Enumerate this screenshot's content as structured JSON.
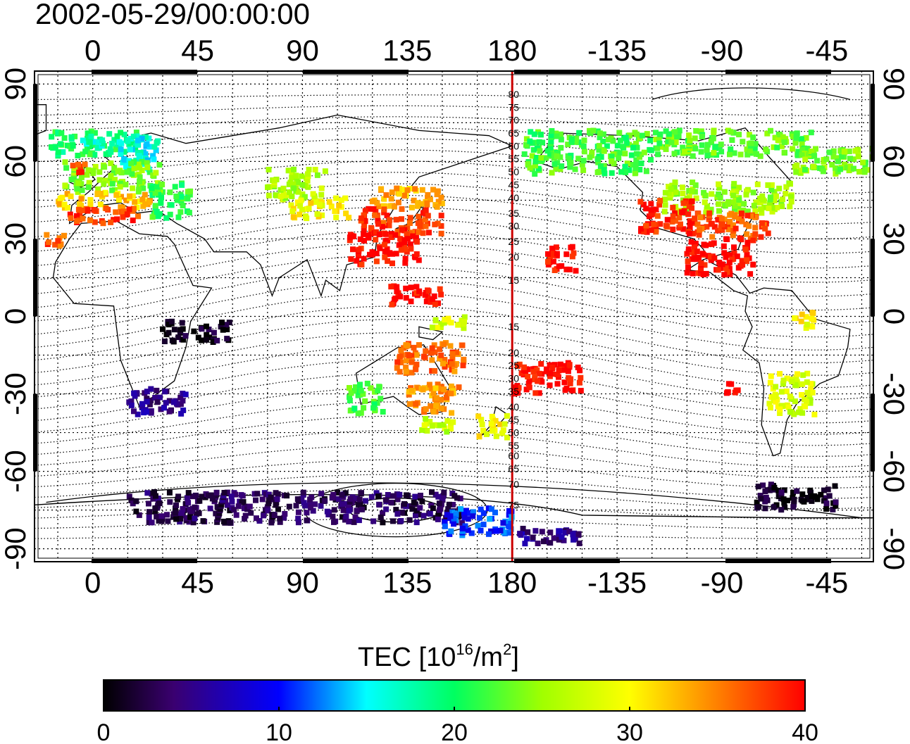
{
  "timestamp": "2002-05-29/00:00:00",
  "map": {
    "lon_range": [
      -25,
      335
    ],
    "lat_range": [
      -95,
      95
    ],
    "lon_ticks": [
      {
        "value": 0,
        "label": "0"
      },
      {
        "value": 45,
        "label": "45"
      },
      {
        "value": 90,
        "label": "90"
      },
      {
        "value": 135,
        "label": "135"
      },
      {
        "value": 180,
        "label": "180"
      },
      {
        "value": 225,
        "label": "-135"
      },
      {
        "value": 270,
        "label": "-90"
      },
      {
        "value": 315,
        "label": "-45"
      }
    ],
    "lat_ticks": [
      {
        "value": 90,
        "label": "90"
      },
      {
        "value": 60,
        "label": "60"
      },
      {
        "value": 30,
        "label": "30"
      },
      {
        "value": 0,
        "label": "0"
      },
      {
        "value": -30,
        "label": "-30"
      },
      {
        "value": -60,
        "label": "-60"
      },
      {
        "value": -90,
        "label": "-90"
      }
    ],
    "meridian_line_lon": 180,
    "meridian_color": "#cc0000",
    "contour_labels": [
      {
        "lat": 86,
        "label": "80"
      },
      {
        "lat": 81,
        "label": "75"
      },
      {
        "lat": 76,
        "label": "70"
      },
      {
        "lat": 71,
        "label": "65"
      },
      {
        "lat": 66,
        "label": "60"
      },
      {
        "lat": 61,
        "label": "55"
      },
      {
        "lat": 56,
        "label": "50"
      },
      {
        "lat": 51,
        "label": "45"
      },
      {
        "lat": 46,
        "label": "40"
      },
      {
        "lat": 40,
        "label": "35"
      },
      {
        "lat": 35,
        "label": "30"
      },
      {
        "lat": 29,
        "label": "25"
      },
      {
        "lat": 23,
        "label": "20"
      },
      {
        "lat": 14,
        "label": "15"
      },
      {
        "lat": -4,
        "label": "15"
      },
      {
        "lat": -14,
        "label": "20"
      },
      {
        "lat": -19,
        "label": "25"
      },
      {
        "lat": -24,
        "label": "30"
      },
      {
        "lat": -29,
        "label": "35"
      },
      {
        "lat": -35,
        "label": "40"
      },
      {
        "lat": -40,
        "label": "45"
      },
      {
        "lat": -45,
        "label": "50"
      },
      {
        "lat": -50,
        "label": "55"
      },
      {
        "lat": -54,
        "label": "60"
      },
      {
        "lat": -59,
        "label": "65"
      },
      {
        "lat": -65,
        "label": "70"
      },
      {
        "lat": -73,
        "label": "75"
      }
    ]
  },
  "colorbar": {
    "title_main": "TEC  [10",
    "title_exp1": "16",
    "title_mid": "/m",
    "title_exp2": "2",
    "title_end": "]",
    "min": 0,
    "max": 40,
    "ticks": [
      {
        "value": 0,
        "label": "0"
      },
      {
        "value": 10,
        "label": "10"
      },
      {
        "value": 20,
        "label": "20"
      },
      {
        "value": 30,
        "label": "30"
      },
      {
        "value": 40,
        "label": "40"
      }
    ],
    "stops": [
      {
        "v": 0,
        "color": "#000000"
      },
      {
        "v": 4,
        "color": "#3a0070"
      },
      {
        "v": 10,
        "color": "#0000ff"
      },
      {
        "v": 15,
        "color": "#00ffff"
      },
      {
        "v": 20,
        "color": "#00ff60"
      },
      {
        "v": 25,
        "color": "#a0ff00"
      },
      {
        "v": 30,
        "color": "#ffff00"
      },
      {
        "v": 35,
        "color": "#ff8000"
      },
      {
        "v": 40,
        "color": "#ff0000"
      }
    ]
  },
  "chart_data": {
    "type": "heatmap",
    "title": "2002-05-29/00:00:00",
    "colorbar_label": "TEC [10^16/m^2]",
    "value_range": [
      0,
      40
    ],
    "regions": [
      {
        "lon": [
          -18,
          20
        ],
        "lat": [
          62,
          72
        ],
        "tec": 20
      },
      {
        "lon": [
          -5,
          22
        ],
        "lat": [
          66,
          70
        ],
        "tec": 17
      },
      {
        "lon": [
          12,
          28
        ],
        "lat": [
          56,
          70
        ],
        "tec": 16
      },
      {
        "lon": [
          -12,
          30
        ],
        "lat": [
          48,
          60
        ],
        "tec": 24
      },
      {
        "lon": [
          -15,
          25
        ],
        "lat": [
          42,
          48
        ],
        "tec": 32
      },
      {
        "lon": [
          -10,
          20
        ],
        "lat": [
          36,
          42
        ],
        "tec": 38
      },
      {
        "lon": [
          -10,
          -2
        ],
        "lat": [
          55,
          59
        ],
        "tec": 37
      },
      {
        "lon": [
          25,
          42
        ],
        "lat": [
          38,
          52
        ],
        "tec": 21
      },
      {
        "lon": [
          -22,
          -12
        ],
        "lat": [
          27,
          32
        ],
        "tec": 37
      },
      {
        "lon": [
          75,
          100
        ],
        "lat": [
          45,
          57
        ],
        "tec": 26
      },
      {
        "lon": [
          85,
          110
        ],
        "lat": [
          38,
          46
        ],
        "tec": 30
      },
      {
        "lon": [
          120,
          150
        ],
        "lat": [
          42,
          50
        ],
        "tec": 33
      },
      {
        "lon": [
          115,
          150
        ],
        "lat": [
          32,
          42
        ],
        "tec": 38
      },
      {
        "lon": [
          110,
          140
        ],
        "lat": [
          20,
          32
        ],
        "tec": 40
      },
      {
        "lon": [
          128,
          150
        ],
        "lat": [
          4,
          12
        ],
        "tec": 40
      },
      {
        "lon": [
          145,
          160
        ],
        "lat": [
          -6,
          0
        ],
        "tec": 28
      },
      {
        "lon": [
          130,
          160
        ],
        "lat": [
          -22,
          -10
        ],
        "tec": 36
      },
      {
        "lon": [
          110,
          125
        ],
        "lat": [
          -38,
          -26
        ],
        "tec": 22
      },
      {
        "lon": [
          135,
          158
        ],
        "lat": [
          -38,
          -26
        ],
        "tec": 34
      },
      {
        "lon": [
          140,
          155
        ],
        "lat": [
          -45,
          -39
        ],
        "tec": 27
      },
      {
        "lon": [
          165,
          178
        ],
        "lat": [
          -47,
          -38
        ],
        "tec": 30
      },
      {
        "lon": [
          180,
          210
        ],
        "lat": [
          -30,
          -18
        ],
        "tec": 40
      },
      {
        "lon": [
          195,
          208
        ],
        "lat": [
          17,
          27
        ],
        "tec": 40
      },
      {
        "lon": [
          245,
          300
        ],
        "lat": [
          40,
          52
        ],
        "tec": 25
      },
      {
        "lon": [
          235,
          260
        ],
        "lat": [
          32,
          45
        ],
        "tec": 39
      },
      {
        "lon": [
          258,
          292
        ],
        "lat": [
          30,
          40
        ],
        "tec": 37
      },
      {
        "lon": [
          255,
          285
        ],
        "lat": [
          16,
          30
        ],
        "tec": 40
      },
      {
        "lon": [
          185,
          240
        ],
        "lat": [
          55,
          72
        ],
        "tec": 22
      },
      {
        "lon": [
          240,
          310
        ],
        "lat": [
          62,
          72
        ],
        "tec": 23
      },
      {
        "lon": [
          300,
          335
        ],
        "lat": [
          55,
          65
        ],
        "tec": 24
      },
      {
        "lon": [
          290,
          310
        ],
        "lat": [
          -38,
          -22
        ],
        "tec": 28
      },
      {
        "lon": [
          270,
          280
        ],
        "lat": [
          -30,
          -26
        ],
        "tec": 40
      },
      {
        "lon": [
          300,
          310
        ],
        "lat": [
          -5,
          2
        ],
        "tec": 30
      },
      {
        "lon": [
          15,
          40
        ],
        "lat": [
          -38,
          -28
        ],
        "tec": 5
      },
      {
        "lon": [
          30,
          60
        ],
        "lat": [
          -10,
          -2
        ],
        "tec": 1
      },
      {
        "lon": [
          15,
          160
        ],
        "lat": [
          -80,
          -68
        ],
        "tec": 3
      },
      {
        "lon": [
          150,
          180
        ],
        "lat": [
          -85,
          -74
        ],
        "tec": 11
      },
      {
        "lon": [
          180,
          210
        ],
        "lat": [
          -88,
          -82
        ],
        "tec": 5
      },
      {
        "lon": [
          285,
          320
        ],
        "lat": [
          -75,
          -65
        ],
        "tec": 1
      }
    ]
  }
}
